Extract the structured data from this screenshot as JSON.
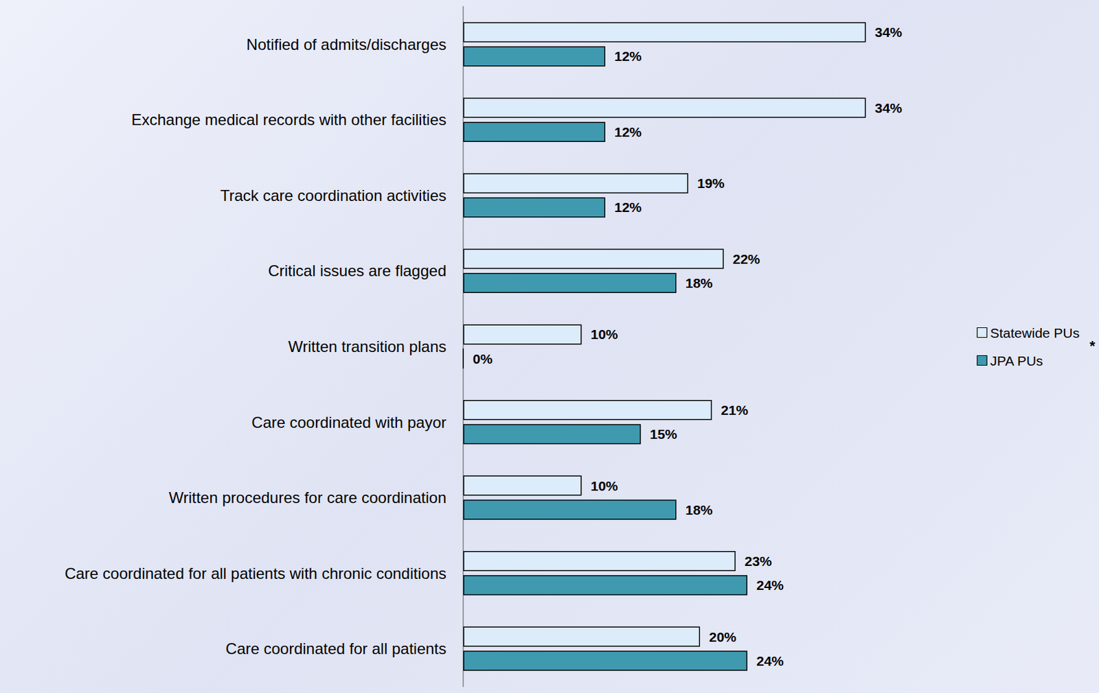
{
  "chart_data": {
    "type": "bar",
    "orientation": "horizontal",
    "categories": [
      "Notified of admits/discharges",
      "Exchange medical records with other facilities",
      "Track care coordination activities",
      "Critical issues are flagged",
      "Written transition plans",
      "Care coordinated with payor",
      "Written procedures for care coordination",
      "Care coordinated for all patients with chronic conditions",
      "Care coordinated for all patients"
    ],
    "series": [
      {
        "name": "Statewide PUs",
        "color": "#dcecfa",
        "values": [
          34,
          34,
          19,
          22,
          10,
          21,
          10,
          23,
          20
        ],
        "value_labels": [
          "34%",
          "34%",
          "19%",
          "22%",
          "10%",
          "21%",
          "10%",
          "23%",
          "20%"
        ]
      },
      {
        "name": "JPA PUs",
        "color": "#3f9ab0",
        "values": [
          12,
          12,
          12,
          18,
          0,
          15,
          18,
          24,
          24
        ],
        "value_labels": [
          "12%",
          "12%",
          "12%",
          "18%",
          "0%",
          "15%",
          "18%",
          "24%",
          "24%"
        ]
      }
    ],
    "xlim": [
      0,
      40
    ],
    "annotation": "*",
    "data_labels": true,
    "tick_labels": "y",
    "grid": false,
    "legend": "right"
  }
}
